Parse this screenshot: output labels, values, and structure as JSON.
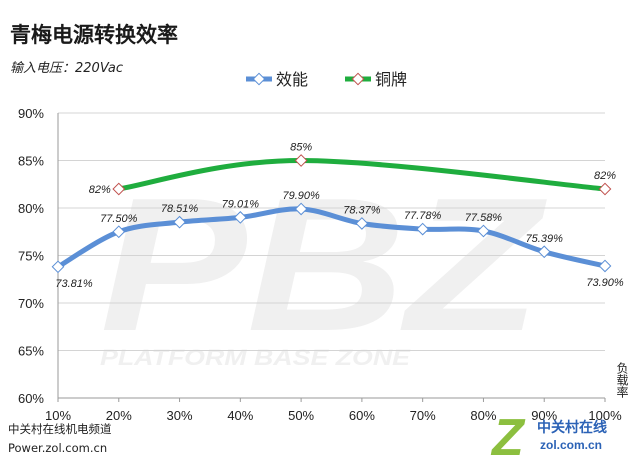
{
  "chart_data": {
    "type": "line",
    "title": "青梅电源转换效率",
    "subtitle": "输入电压：220Vac",
    "xlabel": "负载率",
    "categories": [
      "10%",
      "20%",
      "30%",
      "40%",
      "50%",
      "60%",
      "70%",
      "80%",
      "90%",
      "100%"
    ],
    "x": [
      10,
      20,
      30,
      40,
      50,
      60,
      70,
      80,
      90,
      100
    ],
    "yticks": [
      "60%",
      "65%",
      "70%",
      "75%",
      "80%",
      "85%",
      "90%"
    ],
    "ylim": [
      60,
      90
    ],
    "grid": "horizontal",
    "legend_position": "top",
    "series": [
      {
        "name": "效能",
        "color": "#5b8fd6",
        "smooth": true,
        "x": [
          10,
          20,
          30,
          40,
          50,
          60,
          70,
          80,
          90,
          100
        ],
        "values": [
          73.81,
          77.5,
          78.51,
          79.01,
          79.9,
          78.37,
          77.78,
          77.58,
          75.39,
          73.9
        ],
        "labels": [
          "73.81%",
          "77.50%",
          "78.51%",
          "79.01%",
          "79.90%",
          "78.37%",
          "77.78%",
          "77.58%",
          "75.39%",
          "73.90%"
        ],
        "label_positions": [
          "below",
          "above",
          "above",
          "above",
          "above",
          "above",
          "above",
          "above",
          "above",
          "below"
        ]
      },
      {
        "name": "铜牌",
        "color": "#1fad3e",
        "smooth": true,
        "x": [
          20,
          50,
          100
        ],
        "values": [
          82,
          85,
          82
        ],
        "labels": [
          "82%",
          "85%",
          "82%"
        ],
        "label_positions": [
          "left",
          "above",
          "above"
        ]
      }
    ]
  },
  "watermark": {
    "letters": "PBZ",
    "text": "PLATFORM BASE ZONE"
  },
  "footer": {
    "line1": "中关村在线机电频道",
    "line2": "Power.zol.com.cn"
  },
  "logo": {
    "letter": "Z",
    "name": "中关村在线",
    "url": "zol.com.cn"
  }
}
